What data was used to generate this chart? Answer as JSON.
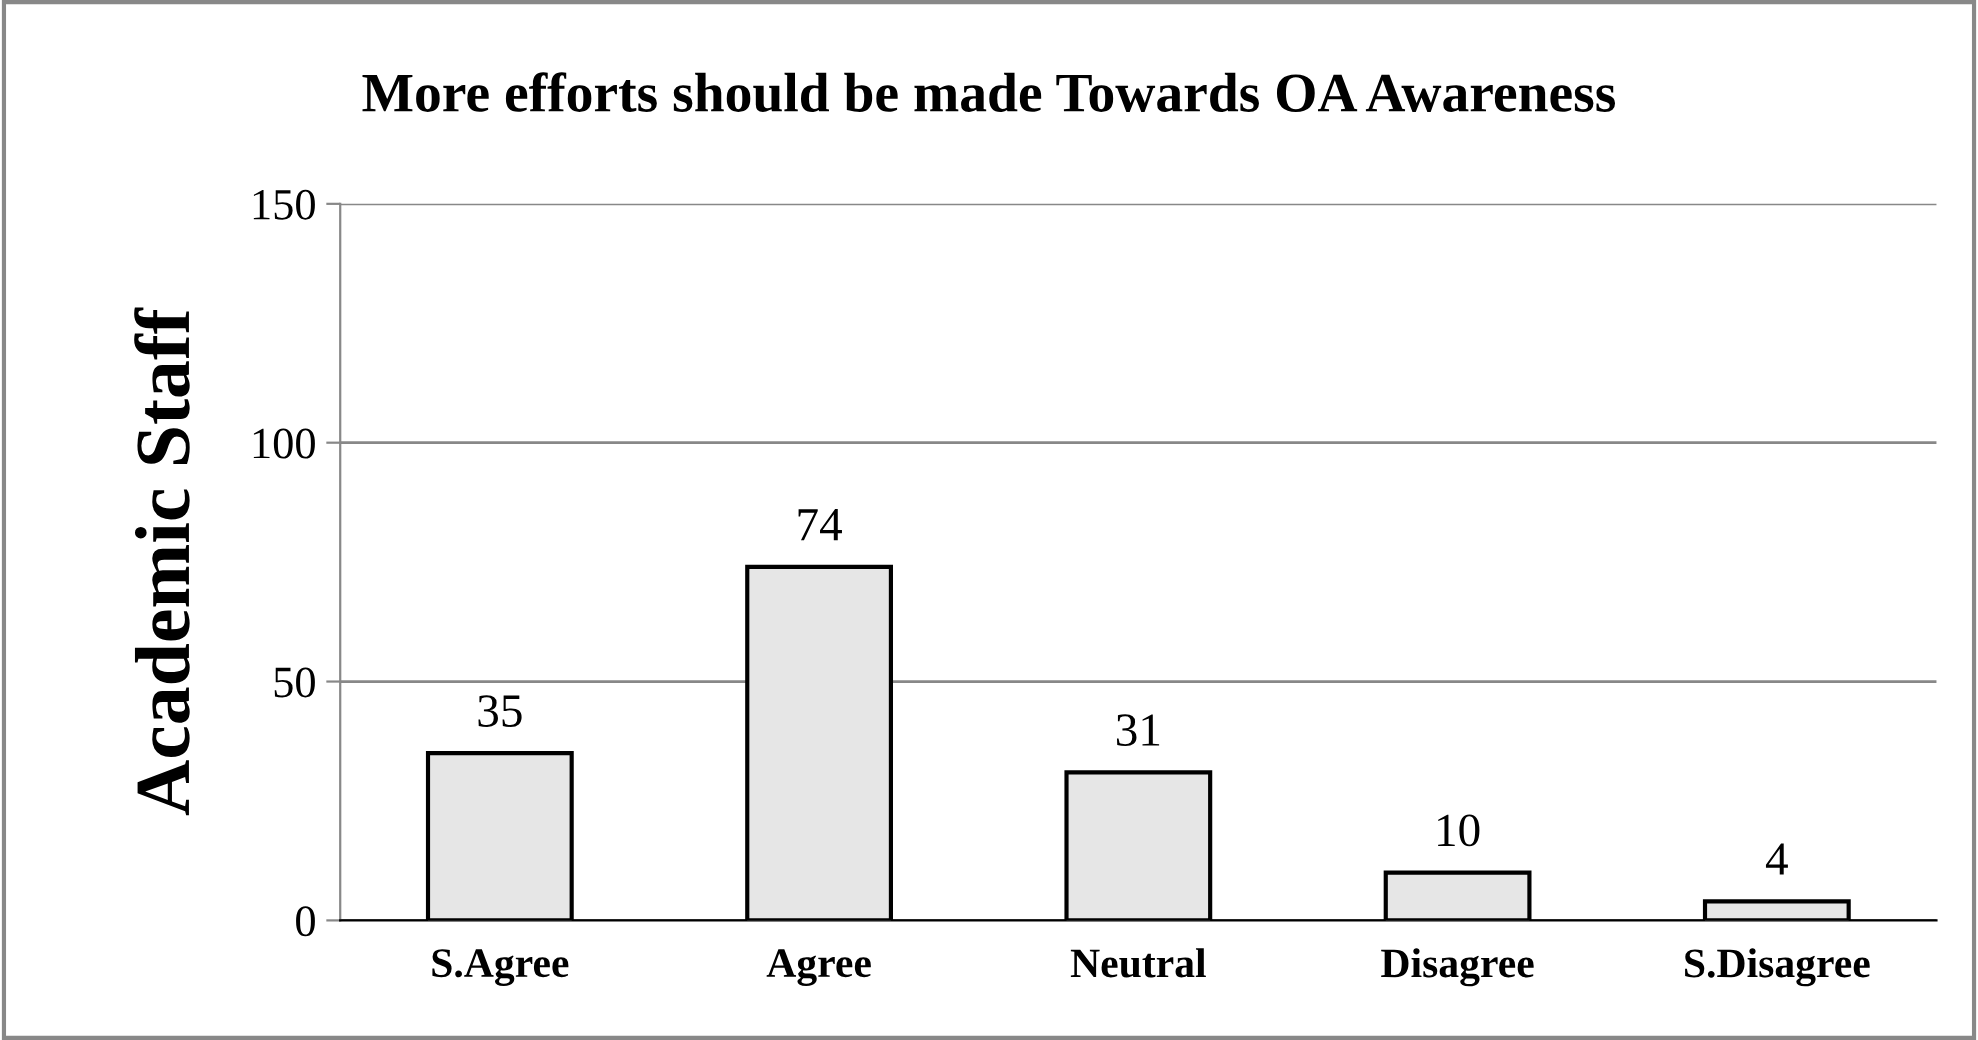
{
  "chart_data": {
    "type": "bar",
    "title": "More efforts should be made Towards OA Awareness",
    "ylabel": "Academic Staff",
    "categories": [
      "S.Agree",
      "Agree",
      "Neutral",
      "Disagree",
      "S.Disagree"
    ],
    "values": [
      35,
      74,
      31,
      10,
      4
    ],
    "color": "#e6e6e6",
    "ylim": [
      0,
      150
    ],
    "yticks": [
      0,
      50,
      100,
      150
    ],
    "grid": "y",
    "data_labels": true,
    "legend": false
  }
}
